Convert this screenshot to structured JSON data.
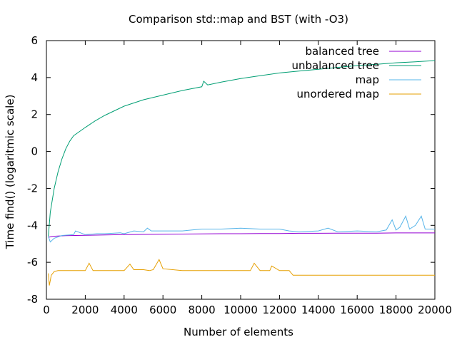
{
  "chart_data": {
    "type": "line",
    "title": "Comparison std::map and BST (with -O3)",
    "xlabel": "Number of elements",
    "ylabel": "Time find() (logaritmic scale)",
    "xlim": [
      0,
      20000
    ],
    "ylim": [
      -8,
      6
    ],
    "xticks": [
      0,
      2000,
      4000,
      6000,
      8000,
      10000,
      12000,
      14000,
      16000,
      18000,
      20000
    ],
    "yticks": [
      -8,
      -6,
      -4,
      -2,
      0,
      2,
      4,
      6
    ],
    "grid": false,
    "legend_position": "top-right",
    "series": [
      {
        "name": "balanced tree",
        "color": "#9400d3",
        "x": [
          100,
          300,
          600,
          1000,
          1500,
          2000,
          3000,
          4000,
          5000,
          6000,
          7000,
          8000,
          9000,
          10000,
          11000,
          12000,
          13000,
          14000,
          15000,
          16000,
          17000,
          18000,
          19000,
          20000
        ],
        "y": [
          -4.65,
          -4.6,
          -4.58,
          -4.56,
          -4.55,
          -4.54,
          -4.52,
          -4.5,
          -4.49,
          -4.48,
          -4.47,
          -4.46,
          -4.45,
          -4.45,
          -4.44,
          -4.44,
          -4.43,
          -4.43,
          -4.42,
          -4.42,
          -4.42,
          -4.41,
          -4.41,
          -4.41
        ]
      },
      {
        "name": "unbalanced tree",
        "color": "#009e73",
        "x": [
          100,
          200,
          400,
          600,
          800,
          1000,
          1200,
          1400,
          1600,
          2000,
          2500,
          3000,
          3500,
          4000,
          5000,
          6000,
          7000,
          8000,
          8100,
          8300,
          9000,
          10000,
          11000,
          12000,
          13000,
          14000,
          15000,
          16000,
          17000,
          18000,
          19000,
          20000
        ],
        "y": [
          -4.6,
          -3.3,
          -2.0,
          -1.1,
          -0.4,
          0.15,
          0.55,
          0.85,
          1.0,
          1.3,
          1.65,
          1.95,
          2.2,
          2.45,
          2.8,
          3.05,
          3.3,
          3.5,
          3.8,
          3.6,
          3.75,
          3.95,
          4.1,
          4.25,
          4.35,
          4.45,
          4.55,
          4.65,
          4.72,
          4.8,
          4.85,
          4.92
        ]
      },
      {
        "name": "map",
        "color": "#56b4e9",
        "x": [
          100,
          200,
          400,
          800,
          1400,
          1500,
          2000,
          2600,
          3000,
          3800,
          4000,
          4500,
          5000,
          5200,
          5400,
          6000,
          7000,
          7500,
          8000,
          9000,
          10000,
          11000,
          12000,
          12500,
          13000,
          14000,
          14500,
          15000,
          16000,
          17000,
          17500,
          17800,
          18000,
          18200,
          18500,
          18700,
          19000,
          19300,
          19500,
          19800,
          20000
        ],
        "y": [
          -4.6,
          -4.9,
          -4.7,
          -4.55,
          -4.5,
          -4.3,
          -4.5,
          -4.45,
          -4.45,
          -4.4,
          -4.45,
          -4.3,
          -4.35,
          -4.15,
          -4.3,
          -4.3,
          -4.3,
          -4.25,
          -4.2,
          -4.2,
          -4.15,
          -4.2,
          -4.2,
          -4.3,
          -4.35,
          -4.3,
          -4.15,
          -4.35,
          -4.3,
          -4.35,
          -4.25,
          -3.7,
          -4.25,
          -4.1,
          -3.5,
          -4.2,
          -4.0,
          -3.5,
          -4.2,
          -4.2,
          -4.2
        ]
      },
      {
        "name": "unordered map",
        "color": "#e69f00",
        "x": [
          100,
          150,
          250,
          400,
          600,
          1000,
          1500,
          2000,
          2200,
          2400,
          3000,
          3500,
          4000,
          4300,
          4500,
          5000,
          5300,
          5500,
          5800,
          6000,
          7000,
          8000,
          9000,
          10000,
          10500,
          10700,
          11000,
          11500,
          11600,
          12000,
          12500,
          12700,
          13000,
          14000,
          15000,
          16000,
          17000,
          18000,
          19000,
          20000
        ],
        "y": [
          -6.6,
          -7.25,
          -6.7,
          -6.5,
          -6.45,
          -6.45,
          -6.45,
          -6.45,
          -6.05,
          -6.45,
          -6.45,
          -6.45,
          -6.45,
          -6.1,
          -6.4,
          -6.4,
          -6.45,
          -6.4,
          -5.85,
          -6.35,
          -6.45,
          -6.45,
          -6.45,
          -6.45,
          -6.45,
          -6.05,
          -6.45,
          -6.45,
          -6.2,
          -6.45,
          -6.45,
          -6.7,
          -6.7,
          -6.7,
          -6.7,
          -6.7,
          -6.7,
          -6.7,
          -6.7,
          -6.7
        ]
      }
    ]
  }
}
